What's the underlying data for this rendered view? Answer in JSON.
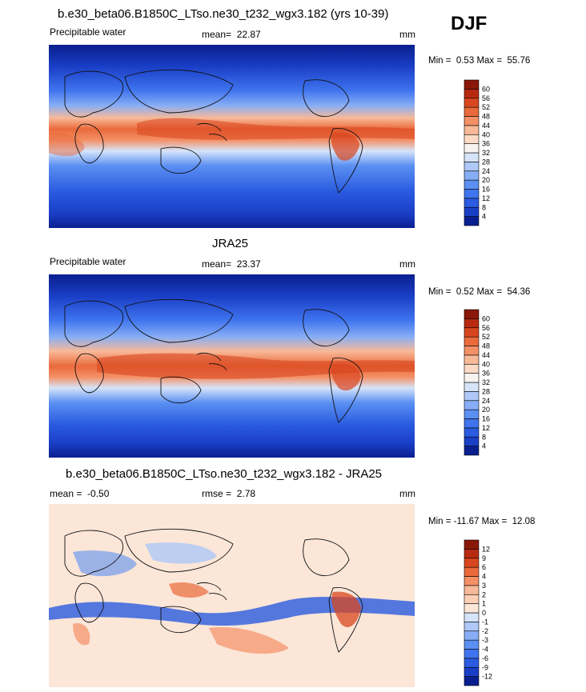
{
  "season": "DJF",
  "panels": [
    {
      "title": "b.e30_beta06.B1850C_LTso.ne30_t232_wgx3.182 (yrs 10-39)",
      "variable": "Precipitable water",
      "stat_label": "mean=",
      "stat_value": "22.87",
      "stat2_label": "",
      "stat2_value": "",
      "units": "mm",
      "min_label": "Min =",
      "min_value": "0.53",
      "max_label": "Max =",
      "max_value": "55.76"
    },
    {
      "title": "JRA25",
      "variable": "Precipitable water",
      "stat_label": "mean=",
      "stat_value": "23.37",
      "stat2_label": "",
      "stat2_value": "",
      "units": "mm",
      "min_label": "Min =",
      "min_value": "0.52",
      "max_label": "Max =",
      "max_value": "54.36"
    },
    {
      "title": "b.e30_beta06.B1850C_LTso.ne30_t232_wgx3.182 - JRA25",
      "variable": "",
      "stat_label": "mean =",
      "stat_value": "-0.50",
      "stat2_label": "rmse =",
      "stat2_value": "2.78",
      "units": "mm",
      "min_label": "Min =",
      "min_value": "-11.67",
      "max_label": "Max =",
      "max_value": "12.08"
    }
  ],
  "chart_data": [
    {
      "type": "heatmap",
      "title": "b.e30_beta06.B1850C_LTso.ne30_t232_wgx3.182 (yrs 10-39)",
      "variable": "Precipitable water",
      "units": "mm",
      "mean": 22.87,
      "min": 0.53,
      "max": 55.76,
      "colorbar_levels": [
        4,
        8,
        12,
        16,
        20,
        24,
        28,
        32,
        36,
        40,
        44,
        48,
        52,
        56,
        60
      ],
      "colorbar_colors": [
        "#0a1f8f",
        "#1a3fc7",
        "#2a5be0",
        "#3f74ee",
        "#5b90f2",
        "#86adf5",
        "#afc8f7",
        "#d6e4fa",
        "#f7f3f0",
        "#fbdac6",
        "#f8b998",
        "#f49066",
        "#ea6a3c",
        "#d8461f",
        "#b72a10",
        "#8a1808"
      ],
      "grid": false
    },
    {
      "type": "heatmap",
      "title": "JRA25",
      "variable": "Precipitable water",
      "units": "mm",
      "mean": 23.37,
      "min": 0.52,
      "max": 54.36,
      "colorbar_levels": [
        4,
        8,
        12,
        16,
        20,
        24,
        28,
        32,
        36,
        40,
        44,
        48,
        52,
        56,
        60
      ],
      "colorbar_colors": [
        "#0a1f8f",
        "#1a3fc7",
        "#2a5be0",
        "#3f74ee",
        "#5b90f2",
        "#86adf5",
        "#afc8f7",
        "#d6e4fa",
        "#f7f3f0",
        "#fbdac6",
        "#f8b998",
        "#f49066",
        "#ea6a3c",
        "#d8461f",
        "#b72a10",
        "#8a1808"
      ],
      "grid": false
    },
    {
      "type": "heatmap",
      "title": "b.e30_beta06.B1850C_LTso.ne30_t232_wgx3.182 - JRA25",
      "units": "mm",
      "mean": -0.5,
      "rmse": 2.78,
      "min": -11.67,
      "max": 12.08,
      "colorbar_levels": [
        -12,
        -9,
        -6,
        -4,
        -3,
        -2,
        -1,
        0,
        1,
        2,
        3,
        4,
        6,
        9,
        12
      ],
      "colorbar_colors": [
        "#0a1f8f",
        "#1a3fc7",
        "#2a5be0",
        "#3f74ee",
        "#5b90f2",
        "#86adf5",
        "#afc8f7",
        "#d6e4fa",
        "#fbe6d8",
        "#fbd0b4",
        "#f8b998",
        "#f49066",
        "#ea6a3c",
        "#d8461f",
        "#b72a10",
        "#8a1808"
      ],
      "grid": false
    }
  ]
}
